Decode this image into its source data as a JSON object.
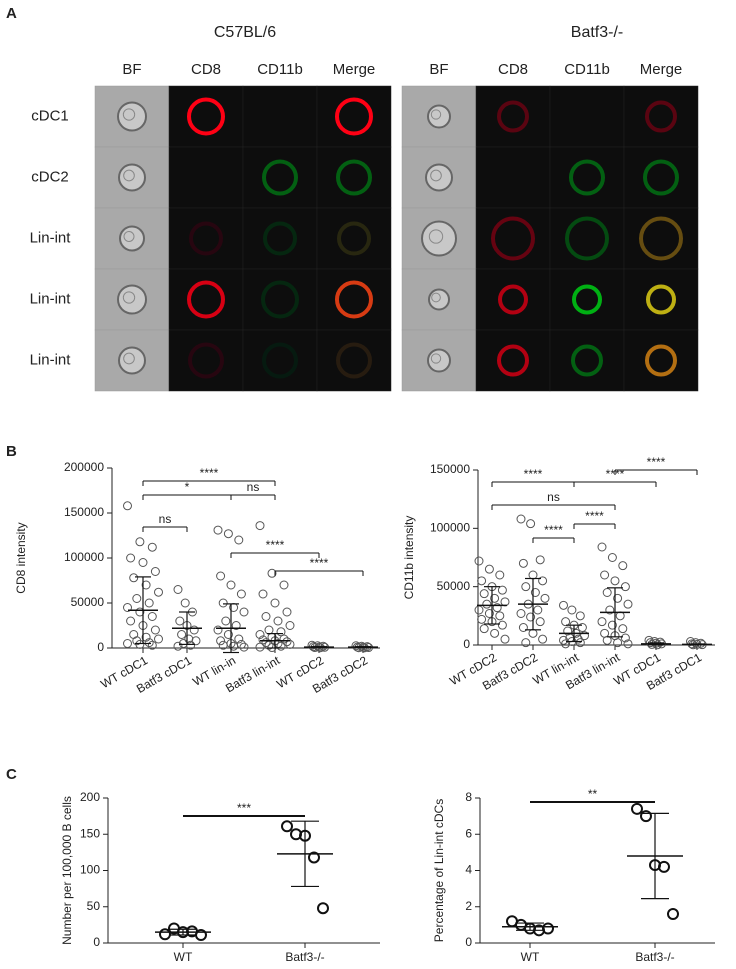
{
  "panels": [
    "A",
    "B",
    "C"
  ],
  "imaging": {
    "groups": [
      "C57BL/6",
      "Batf3-/-"
    ],
    "channels": [
      "BF",
      "CD8",
      "CD11b",
      "Merge"
    ],
    "rows": [
      "cDC1",
      "cDC2",
      "Lin-int",
      "Lin-int",
      "Lin-int"
    ]
  },
  "chart_data": [
    {
      "type": "scatter",
      "ylabel": "CD8 intensity",
      "categories": [
        "WT cDC1",
        "Batf3 cDC1",
        "WT lin-in",
        "Batf3 lin-int",
        "WT cDC2",
        "Batf3 cDC2"
      ],
      "points": [
        [
          158000,
          118000,
          112000,
          100000,
          95000,
          85000,
          78000,
          70000,
          62000,
          55000,
          50000,
          45000,
          40000,
          35000,
          30000,
          25000,
          20000,
          15000,
          12000,
          10000,
          8000,
          6000,
          5000,
          4000,
          3000
        ],
        [
          65000,
          50000,
          40000,
          30000,
          25000,
          20000,
          15000,
          10000,
          8000,
          5000,
          3000,
          2000
        ],
        [
          131000,
          127000,
          120000,
          80000,
          70000,
          60000,
          50000,
          45000,
          40000,
          30000,
          25000,
          20000,
          15000,
          10000,
          8000,
          5000,
          4000,
          3000,
          2000,
          1000
        ],
        [
          136000,
          83000,
          70000,
          60000,
          50000,
          40000,
          35000,
          30000,
          25000,
          20000,
          18000,
          15000,
          12000,
          10000,
          9000,
          8000,
          7000,
          6000,
          5000,
          4000,
          3000,
          2000,
          1000,
          500
        ],
        [
          3000,
          2500,
          2000,
          1500,
          1000,
          800,
          500,
          300
        ],
        [
          2500,
          2000,
          1500,
          1000,
          800,
          500,
          300,
          200
        ]
      ],
      "means": [
        42000,
        22000,
        22000,
        8000,
        1000,
        1000
      ],
      "sds": [
        37000,
        18000,
        27000,
        8000,
        500,
        500
      ],
      "ylim": [
        0,
        200000
      ],
      "yticks": [
        0,
        50000,
        100000,
        150000,
        200000
      ],
      "comparisons": [
        {
          "pair": [
            0,
            3
          ],
          "label": "****"
        },
        {
          "pair": [
            0,
            2
          ],
          "label": "*"
        },
        {
          "pair": [
            2,
            3
          ],
          "label": "ns"
        },
        {
          "pair": [
            0,
            1
          ],
          "label": "ns"
        },
        {
          "pair": [
            2,
            4
          ],
          "label": "****"
        },
        {
          "pair": [
            3,
            5
          ],
          "label": "****"
        }
      ]
    },
    {
      "type": "scatter",
      "ylabel": "CD11b intensity",
      "categories": [
        "WT cDC2",
        "Batf3 cDC2",
        "WT lin-int",
        "Batf3 lin-int",
        "WT cDC1",
        "Batf3 cDC1"
      ],
      "points": [
        [
          72000,
          65000,
          60000,
          55000,
          50000,
          47000,
          44000,
          40000,
          37000,
          35000,
          32000,
          30000,
          27000,
          25000,
          22000,
          20000,
          17000,
          14000,
          10000,
          5000
        ],
        [
          108000,
          104000,
          73000,
          70000,
          60000,
          55000,
          50000,
          45000,
          40000,
          35000,
          30000,
          27000,
          24000,
          20000,
          15000,
          10000,
          5000,
          2000
        ],
        [
          34000,
          30000,
          25000,
          20000,
          17000,
          15000,
          12000,
          10000,
          8000,
          6000,
          5000,
          4000,
          3000,
          2000,
          1000
        ],
        [
          84000,
          75000,
          68000,
          60000,
          55000,
          50000,
          45000,
          40000,
          35000,
          30000,
          25000,
          20000,
          17000,
          14000,
          10000,
          8000,
          6000,
          4000,
          2000,
          1000
        ],
        [
          4000,
          3000,
          2500,
          2000,
          1500,
          1000,
          500,
          200
        ],
        [
          3000,
          2000,
          1500,
          1000,
          500,
          300,
          200
        ]
      ],
      "means": [
        34000,
        35000,
        10000,
        28000,
        1000,
        500
      ],
      "sds": [
        16000,
        22000,
        7000,
        21000,
        800,
        400
      ],
      "ylim": [
        0,
        150000
      ],
      "yticks": [
        0,
        50000,
        100000,
        150000
      ],
      "comparisons": [
        {
          "pair": [
            3,
            5
          ],
          "label": "****"
        },
        {
          "pair": [
            0,
            2
          ],
          "label": "****"
        },
        {
          "pair": [
            2,
            4
          ],
          "label": "****"
        },
        {
          "pair": [
            0,
            3
          ],
          "label": "ns"
        },
        {
          "pair": [
            2,
            3
          ],
          "label": "****"
        },
        {
          "pair": [
            1,
            2
          ],
          "label": "****"
        }
      ]
    },
    {
      "type": "scatter",
      "ylabel": "Number per 100,000 B cells",
      "categories": [
        "WT",
        "Batf3-/-"
      ],
      "points": [
        [
          12,
          20,
          15,
          16,
          11
        ],
        [
          161,
          150,
          148,
          118,
          48
        ]
      ],
      "means": [
        15,
        123
      ],
      "sds": [
        4,
        45
      ],
      "ylim": [
        0,
        200
      ],
      "yticks": [
        0,
        50,
        100,
        150,
        200
      ],
      "comparisons": [
        {
          "pair": [
            0,
            1
          ],
          "label": "***"
        }
      ]
    },
    {
      "type": "scatter",
      "ylabel": "Percentage of Lin-int cDCs",
      "categories": [
        "WT",
        "Batf3-/-"
      ],
      "points": [
        [
          1.2,
          1.0,
          0.8,
          0.7,
          0.8
        ],
        [
          7.4,
          7.0,
          4.3,
          4.2,
          1.6
        ]
      ],
      "means": [
        0.9,
        4.8
      ],
      "sds": [
        0.2,
        2.35
      ],
      "ylim": [
        0,
        8
      ],
      "yticks": [
        0,
        2,
        4,
        6,
        8
      ],
      "comparisons": [
        {
          "pair": [
            0,
            1
          ],
          "label": "**"
        }
      ]
    }
  ]
}
